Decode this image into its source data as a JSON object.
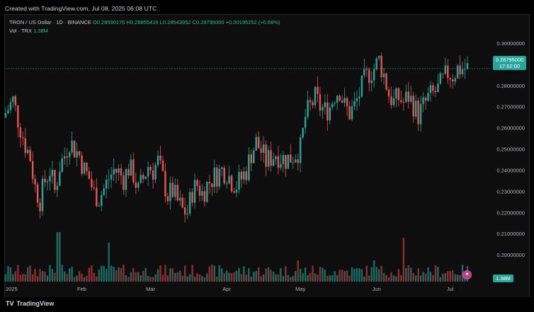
{
  "banner": {
    "created_text": "Created with TradingView.com, Jul 08, 2025 06:08 UTC"
  },
  "legend": {
    "symbol": "TRON / US Dollar · 1D · BINANCE",
    "open": "O0.28590176",
    "high": "H0.28855416",
    "low": "L0.28543952",
    "close": "C0.28795000",
    "change": "+0.00195252 (+0.68%)",
    "vol_label": "Vol · TRX",
    "vol_value": "1.38M"
  },
  "current_price": {
    "price": "0.28795000",
    "countdown": "17:52:00"
  },
  "volume_badge": "1.38M",
  "footer": {
    "brand": "TradingView",
    "logo_icon": "tradingview-logo-icon"
  },
  "colors": {
    "up": "#26a69a",
    "down": "#ef5350",
    "up_vol": "#1b6b63",
    "down_vol": "#8e2f2f",
    "grid": "#1e1e1e",
    "axis_text": "#b2b5be"
  },
  "chart_data": {
    "type": "candlestick",
    "title": "TRON / US Dollar · 1D · BINANCE",
    "xlabel": "",
    "ylabel": "",
    "ylim": [
      0.19,
      0.305
    ],
    "y_ticks": [
      "0.30000000",
      "0.29000000",
      "0.28000000",
      "0.27000000",
      "0.26000000",
      "0.25000000",
      "0.24000000",
      "0.23000000",
      "0.22000000",
      "0.21000000",
      "0.20000000"
    ],
    "y_tick_values": [
      0.3,
      0.29,
      0.28,
      0.27,
      0.26,
      0.25,
      0.24,
      0.23,
      0.22,
      0.21,
      0.2
    ],
    "x_ticks": [
      "2025",
      "Feb",
      "Mar",
      "Apr",
      "May",
      "Jun",
      "Jul"
    ],
    "x_tick_days": [
      0,
      31,
      59,
      90,
      120,
      151,
      181
    ],
    "grid": false,
    "close_path": [
      [
        0,
        0.267
      ],
      [
        3,
        0.273
      ],
      [
        5,
        0.264
      ],
      [
        8,
        0.252
      ],
      [
        10,
        0.246
      ],
      [
        12,
        0.232
      ],
      [
        14,
        0.226
      ],
      [
        16,
        0.235
      ],
      [
        18,
        0.24
      ],
      [
        20,
        0.23
      ],
      [
        22,
        0.242
      ],
      [
        24,
        0.247
      ],
      [
        26,
        0.254
      ],
      [
        28,
        0.25
      ],
      [
        30,
        0.247
      ],
      [
        32,
        0.24
      ],
      [
        34,
        0.236
      ],
      [
        36,
        0.229
      ],
      [
        38,
        0.227
      ],
      [
        40,
        0.231
      ],
      [
        42,
        0.236
      ],
      [
        44,
        0.24
      ],
      [
        46,
        0.239
      ],
      [
        48,
        0.236
      ],
      [
        50,
        0.241
      ],
      [
        52,
        0.238
      ],
      [
        54,
        0.23
      ],
      [
        56,
        0.236
      ],
      [
        58,
        0.242
      ],
      [
        60,
        0.24
      ],
      [
        62,
        0.244
      ],
      [
        64,
        0.236
      ],
      [
        66,
        0.228
      ],
      [
        68,
        0.23
      ],
      [
        70,
        0.225
      ],
      [
        72,
        0.221
      ],
      [
        74,
        0.22
      ],
      [
        76,
        0.23
      ],
      [
        78,
        0.233
      ],
      [
        80,
        0.229
      ],
      [
        82,
        0.233
      ],
      [
        84,
        0.236
      ],
      [
        86,
        0.238
      ],
      [
        88,
        0.24
      ],
      [
        90,
        0.239
      ],
      [
        92,
        0.235
      ],
      [
        94,
        0.233
      ],
      [
        96,
        0.236
      ],
      [
        98,
        0.24
      ],
      [
        100,
        0.248
      ],
      [
        102,
        0.253
      ],
      [
        104,
        0.249
      ],
      [
        106,
        0.244
      ],
      [
        108,
        0.246
      ],
      [
        110,
        0.248
      ],
      [
        112,
        0.246
      ],
      [
        114,
        0.245
      ],
      [
        116,
        0.246
      ],
      [
        118,
        0.248
      ],
      [
        120,
        0.25
      ],
      [
        122,
        0.265
      ],
      [
        124,
        0.27
      ],
      [
        126,
        0.274
      ],
      [
        128,
        0.27
      ],
      [
        130,
        0.268
      ],
      [
        132,
        0.27
      ],
      [
        134,
        0.276
      ],
      [
        136,
        0.278
      ],
      [
        138,
        0.27
      ],
      [
        140,
        0.267
      ],
      [
        142,
        0.27
      ],
      [
        144,
        0.276
      ],
      [
        146,
        0.282
      ],
      [
        148,
        0.286
      ],
      [
        150,
        0.288
      ],
      [
        152,
        0.292
      ],
      [
        154,
        0.285
      ],
      [
        156,
        0.276
      ],
      [
        158,
        0.272
      ],
      [
        160,
        0.274
      ],
      [
        162,
        0.272
      ],
      [
        164,
        0.275
      ],
      [
        166,
        0.271
      ],
      [
        168,
        0.266
      ],
      [
        170,
        0.27
      ],
      [
        172,
        0.274
      ],
      [
        174,
        0.276
      ],
      [
        176,
        0.278
      ],
      [
        178,
        0.282
      ],
      [
        180,
        0.286
      ],
      [
        182,
        0.285
      ],
      [
        184,
        0.288
      ]
    ]
  }
}
